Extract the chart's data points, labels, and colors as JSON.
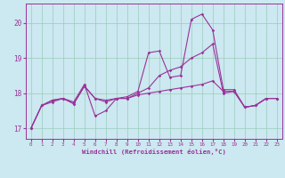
{
  "xlabel": "Windchill (Refroidissement éolien,°C)",
  "background_color": "#cce8f0",
  "grid_color": "#99ccbb",
  "line_color": "#993399",
  "x_ticks": [
    0,
    1,
    2,
    3,
    4,
    5,
    6,
    7,
    8,
    9,
    10,
    11,
    12,
    13,
    14,
    15,
    16,
    17,
    18,
    19,
    20,
    21,
    22,
    23
  ],
  "y_ticks": [
    17,
    18,
    19,
    20
  ],
  "xlim": [
    -0.5,
    23.5
  ],
  "ylim": [
    16.7,
    20.55
  ],
  "s1": [
    17.0,
    17.65,
    17.8,
    17.85,
    17.75,
    18.25,
    17.35,
    17.5,
    17.85,
    17.9,
    18.05,
    19.15,
    19.2,
    18.45,
    18.5,
    20.1,
    20.25,
    19.8,
    18.1,
    18.1,
    17.6,
    17.65,
    17.85,
    17.85
  ],
  "s2": [
    17.0,
    17.65,
    17.8,
    17.85,
    17.7,
    18.2,
    17.85,
    17.8,
    17.85,
    17.85,
    18.0,
    18.15,
    18.5,
    18.65,
    18.75,
    19.0,
    19.15,
    19.4,
    18.0,
    18.05,
    17.6,
    17.65,
    17.85,
    17.85
  ],
  "s3": [
    17.0,
    17.65,
    17.75,
    17.85,
    17.7,
    18.2,
    17.85,
    17.75,
    17.85,
    17.85,
    17.95,
    18.0,
    18.05,
    18.1,
    18.15,
    18.2,
    18.25,
    18.35,
    18.05,
    18.05,
    17.6,
    17.65,
    17.85,
    17.85
  ]
}
